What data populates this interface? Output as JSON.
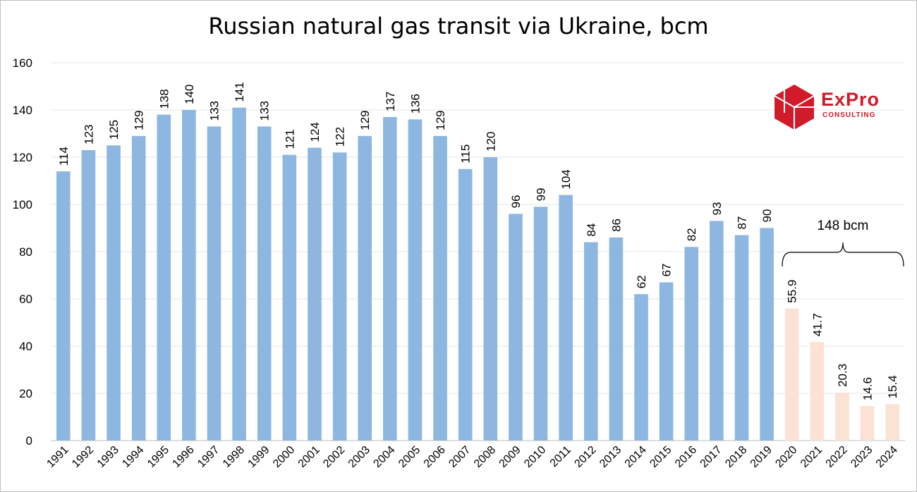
{
  "chart_data": {
    "type": "bar",
    "title": "Russian natural gas transit via Ukraine, bcm",
    "xlabel": "",
    "ylabel": "",
    "ylim": [
      0,
      160
    ],
    "yticks": [
      "0",
      "20",
      "40",
      "60",
      "80",
      "100",
      "120",
      "140",
      "160"
    ],
    "grid": true,
    "categories": [
      "1991",
      "1992",
      "1993",
      "1994",
      "1995",
      "1996",
      "1997",
      "1998",
      "1999",
      "2000",
      "2001",
      "2002",
      "2003",
      "2004",
      "2005",
      "2006",
      "2007",
      "2008",
      "2009",
      "2010",
      "2011",
      "2012",
      "2013",
      "2014",
      "2015",
      "2016",
      "2017",
      "2018",
      "2019",
      "2020",
      "2021",
      "2022",
      "2023",
      "2024"
    ],
    "values": [
      114,
      123,
      125,
      129,
      138,
      140,
      133,
      141,
      133,
      121,
      124,
      122,
      129,
      137,
      136,
      129,
      115,
      120,
      96,
      99,
      104,
      84,
      86,
      62,
      67,
      82,
      93,
      87,
      90,
      55.9,
      41.7,
      20.3,
      14.6,
      15.4
    ],
    "value_labels": [
      "114",
      "123",
      "125",
      "129",
      "138",
      "140",
      "133",
      "141",
      "133",
      "121",
      "124",
      "122",
      "129",
      "137",
      "136",
      "129",
      "115",
      "120",
      "96",
      "99",
      "104",
      "84",
      "86",
      "62",
      "67",
      "82",
      "93",
      "87",
      "90",
      "55.9",
      "41.7",
      "20.3",
      "14.6",
      "15.4"
    ],
    "colors": {
      "historic": "#8db7e1",
      "recent": "#fbe2d4",
      "grid": "#e6e6e6",
      "axis": "#bfbfbf"
    },
    "highlight_from": "2020",
    "annotation": {
      "text": "148 bcm",
      "from": "2020",
      "to": "2024"
    }
  },
  "logo": {
    "word": "ExPro",
    "sub": "CONSULTING",
    "color": "#d11a2a",
    "icon": "cube-icon"
  }
}
